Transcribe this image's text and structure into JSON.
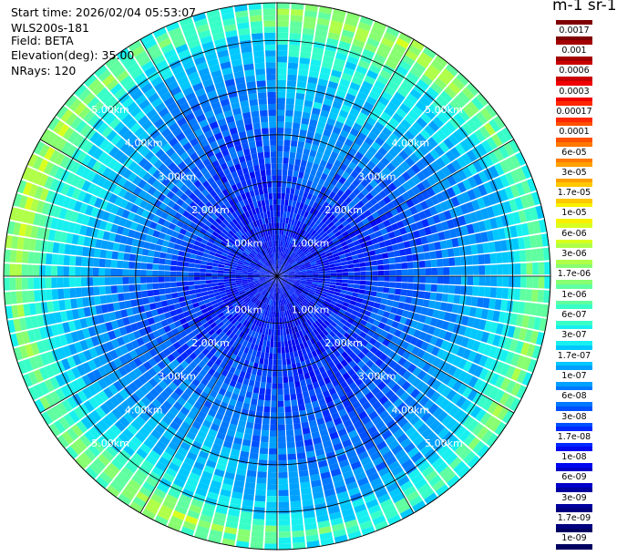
{
  "info": {
    "start_time": "Start time: 2026/02/04 05:53:07",
    "instrument": "WLS200s-181",
    "field": "Field: BETA",
    "elevation": "Elevation(deg): 35.00",
    "nrays": "NRays: 120"
  },
  "colorbar": {
    "title": "m-1 sr-1",
    "labels": [
      "0.0017",
      "0.001",
      "0.0006",
      "0.0003",
      "0.00017",
      "0.0001",
      "6e-05",
      "3e-05",
      "1.7e-05",
      "1e-05",
      "6e-06",
      "3e-06",
      "1.7e-06",
      "1e-06",
      "6e-07",
      "3e-07",
      "1.7e-07",
      "1e-07",
      "6e-08",
      "3e-08",
      "1.7e-08",
      "1e-08",
      "6e-09",
      "3e-09",
      "1.7e-09",
      "1e-09"
    ],
    "colors": [
      "#7e0000",
      "#a20000",
      "#c80000",
      "#f00000",
      "#ff2800",
      "#ff5000",
      "#ff7800",
      "#ffa000",
      "#ffc800",
      "#f8f000",
      "#d8ff20",
      "#b0ff48",
      "#88ff70",
      "#60ffa0",
      "#38ffc8",
      "#18f0f0",
      "#00c8ff",
      "#00a0ff",
      "#0078ff",
      "#0050ff",
      "#0028ff",
      "#0008f0",
      "#0000c8",
      "#0000a0",
      "#000080",
      "#000060"
    ]
  },
  "chart_data": {
    "type": "heatmap",
    "projection": "polar-ppi",
    "field": "BETA",
    "units": "m-1 sr-1",
    "elevation_deg": 35.0,
    "n_rays": 120,
    "range_rings_km": [
      1,
      2,
      3,
      4,
      5
    ],
    "ring_labels": [
      "1.00km",
      "2.00km",
      "3.00km",
      "4.00km",
      "5.00km"
    ],
    "spoke_angles_deg": [
      0,
      30,
      60,
      90,
      120,
      150,
      180,
      210,
      240,
      270,
      300,
      330
    ],
    "max_range_km": 5.8,
    "value_scale": "log",
    "value_range": [
      1e-09,
      0.0017
    ],
    "radial_profile": [
      {
        "range_km": 0.0,
        "log10_beta": -7.8
      },
      {
        "range_km": 1.0,
        "log10_beta": -7.8
      },
      {
        "range_km": 2.0,
        "log10_beta": -7.6
      },
      {
        "range_km": 3.0,
        "log10_beta": -7.3
      },
      {
        "range_km": 4.0,
        "log10_beta": -7.0
      },
      {
        "range_km": 5.0,
        "log10_beta": -6.6
      },
      {
        "range_km": 5.5,
        "log10_beta": -5.8
      },
      {
        "range_km": 5.8,
        "log10_beta": -6.3
      }
    ]
  }
}
